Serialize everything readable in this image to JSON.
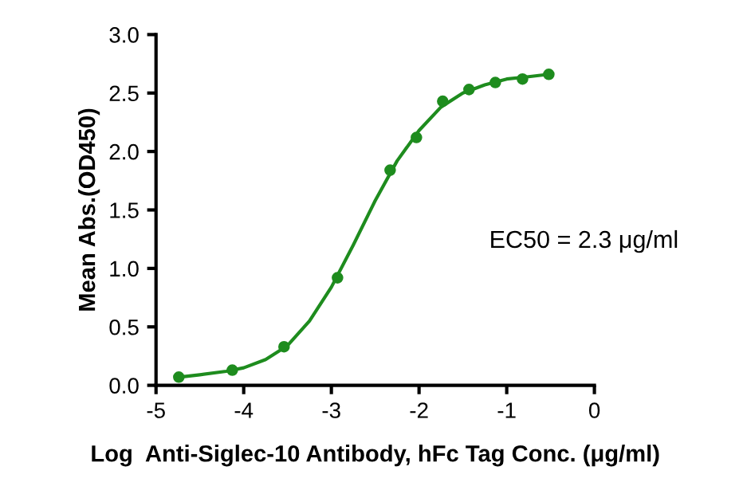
{
  "chart_data": {
    "type": "scatter",
    "xlabel": "Log  Anti-Siglec-10 Antibody, hFc Tag Conc. (μg/ml)",
    "ylabel": "Mean Abs.(OD450)",
    "series": [
      {
        "color": "#1e8c1e",
        "marker": "circle",
        "x": [
          -4.74,
          -4.13,
          -3.54,
          -2.93,
          -2.33,
          -2.03,
          -1.73,
          -1.43,
          -1.13,
          -0.82,
          -0.52
        ],
        "values": [
          0.07,
          0.13,
          0.33,
          0.92,
          1.84,
          2.12,
          2.43,
          2.53,
          2.59,
          2.62,
          2.66
        ]
      },
      {
        "type": "line",
        "color": "#1e8c1e",
        "marker": "none",
        "x": [
          -4.74,
          -4.5,
          -4.2,
          -4.0,
          -3.75,
          -3.5,
          -3.25,
          -3.0,
          -2.75,
          -2.5,
          -2.25,
          -2.0,
          -1.75,
          -1.5,
          -1.25,
          -1.0,
          -0.75,
          -0.52
        ],
        "values": [
          0.07,
          0.09,
          0.12,
          0.15,
          0.22,
          0.34,
          0.55,
          0.84,
          1.2,
          1.58,
          1.92,
          2.18,
          2.38,
          2.5,
          2.57,
          2.62,
          2.64,
          2.66
        ]
      }
    ],
    "xlim": [
      -5,
      0
    ],
    "xticks": [
      -5,
      -4,
      -3,
      -2,
      -1,
      0
    ],
    "ylim": [
      0,
      3
    ],
    "yticks": [
      {
        "value": 0,
        "label": "0.0"
      },
      {
        "value": 0.5,
        "label": "0.5"
      },
      {
        "value": 1,
        "label": "1.0"
      },
      {
        "value": 1.5,
        "label": "1.5"
      },
      {
        "value": 2,
        "label": "2.0"
      },
      {
        "value": 2.5,
        "label": "2.5"
      },
      {
        "value": 3,
        "label": "3.0"
      }
    ],
    "annotations": [
      "EC50 = 2.3 μg/ml"
    ],
    "grid": false,
    "legend": false
  }
}
